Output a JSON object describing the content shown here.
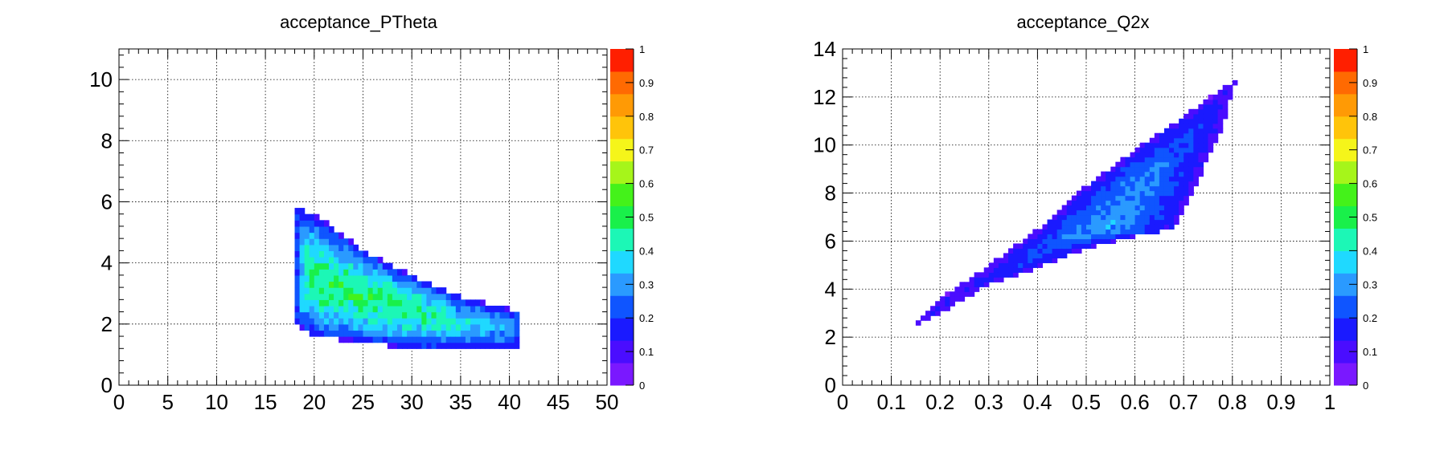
{
  "palette": [
    "#7a18ff",
    "#4a0dff",
    "#1a1aff",
    "#0f55ff",
    "#2a9aff",
    "#1fd9ff",
    "#1cf7b6",
    "#19f04a",
    "#44f21a",
    "#a6f51a",
    "#f5f51a",
    "#ffc40a",
    "#ff9a05",
    "#ff6a02",
    "#ff1f00"
  ],
  "chart_data": [
    {
      "type": "heatmap",
      "title": "acceptance_PTheta",
      "xlabel": "",
      "ylabel": "",
      "xlim": [
        0,
        50
      ],
      "ylim": [
        0,
        11
      ],
      "x_ticks": [
        "0",
        "5",
        "10",
        "15",
        "20",
        "25",
        "30",
        "35",
        "40",
        "45",
        "50"
      ],
      "y_ticks": [
        "0",
        "2",
        "4",
        "6",
        "8",
        "10"
      ],
      "z_range": [
        0,
        1
      ],
      "z_ticks": [
        "0",
        "0.1",
        "0.2",
        "0.3",
        "0.4",
        "0.5",
        "0.6",
        "0.7",
        "0.8",
        "0.9",
        "1"
      ],
      "grid": true,
      "region_outline": [
        [
          18,
          2.0
        ],
        [
          18,
          5.9
        ],
        [
          21,
          5.4
        ],
        [
          25,
          4.4
        ],
        [
          30,
          3.6
        ],
        [
          35,
          2.9
        ],
        [
          40,
          2.5
        ],
        [
          41,
          2.4
        ],
        [
          41,
          1.2
        ],
        [
          30,
          1.2
        ],
        [
          20,
          1.6
        ]
      ],
      "peak_value": 0.55,
      "peak_location": [
        30,
        2.7
      ],
      "x_step": 0.5,
      "y_step": 0.2
    },
    {
      "type": "heatmap",
      "title": "acceptance_Q2x",
      "xlabel": "",
      "ylabel": "",
      "xlim": [
        0,
        1
      ],
      "ylim": [
        0,
        14
      ],
      "x_ticks": [
        "0",
        "0.1",
        "0.2",
        "0.3",
        "0.4",
        "0.5",
        "0.6",
        "0.7",
        "0.8",
        "0.9",
        "1"
      ],
      "y_ticks": [
        "0",
        "2",
        "4",
        "6",
        "8",
        "10",
        "12",
        "14"
      ],
      "z_range": [
        0,
        1
      ],
      "z_ticks": [
        "0",
        "0.1",
        "0.2",
        "0.3",
        "0.4",
        "0.5",
        "0.6",
        "0.7",
        "0.8",
        "0.9",
        "1"
      ],
      "grid": true,
      "region_outline": [
        [
          0.13,
          2.3
        ],
        [
          0.2,
          3.6
        ],
        [
          0.3,
          5.0
        ],
        [
          0.4,
          6.5
        ],
        [
          0.5,
          8.3
        ],
        [
          0.6,
          9.8
        ],
        [
          0.7,
          11.2
        ],
        [
          0.81,
          12.8
        ],
        [
          0.78,
          10.8
        ],
        [
          0.74,
          9.0
        ],
        [
          0.68,
          6.5
        ],
        [
          0.6,
          6.2
        ],
        [
          0.5,
          5.7
        ],
        [
          0.4,
          4.9
        ],
        [
          0.3,
          4.2
        ],
        [
          0.2,
          3.0
        ]
      ],
      "peak_value": 0.5,
      "peak_location": [
        0.55,
        8.0
      ],
      "x_step": 0.01,
      "y_step": 0.2
    }
  ]
}
